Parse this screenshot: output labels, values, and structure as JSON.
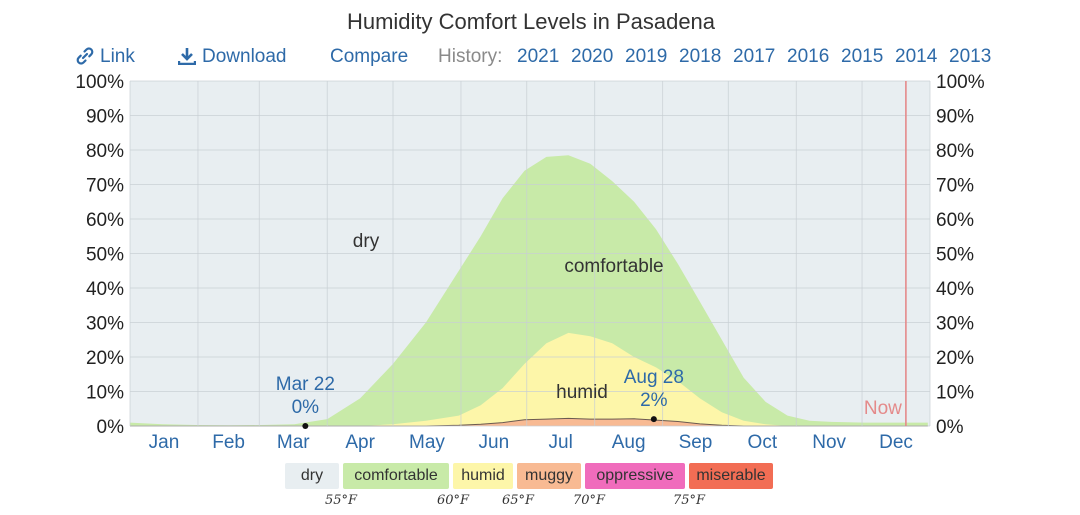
{
  "page": {
    "title": "Humidity Comfort Levels in Pasadena"
  },
  "toolbar": {
    "link_label": "Link",
    "download_label": "Download",
    "compare_label": "Compare",
    "history_label": "History:",
    "years": [
      "2021",
      "2020",
      "2019",
      "2018",
      "2017",
      "2016",
      "2015",
      "2014",
      "2013"
    ],
    "accent": "#2e6aa8"
  },
  "chart_data": {
    "type": "area",
    "title": "Humidity Comfort Levels in Pasadena",
    "months": [
      "Jan",
      "Feb",
      "Mar",
      "Apr",
      "May",
      "Jun",
      "Jul",
      "Aug",
      "Sep",
      "Oct",
      "Nov",
      "Dec"
    ],
    "y_ticks": [
      "0%",
      "10%",
      "20%",
      "30%",
      "40%",
      "50%",
      "60%",
      "70%",
      "80%",
      "90%",
      "100%"
    ],
    "ylim": [
      0,
      100
    ],
    "grid": true,
    "day_of_year_points": [
      0,
      15,
      30,
      45,
      60,
      75,
      90,
      105,
      120,
      135,
      150,
      160,
      170,
      180,
      190,
      200,
      210,
      220,
      230,
      240,
      250,
      260,
      270,
      280,
      290,
      300,
      310,
      320,
      335,
      350,
      364
    ],
    "series": [
      {
        "name": "comfortable",
        "color": "#c8eaa8",
        "values": [
          1,
          0.5,
          0.3,
          0.2,
          0.3,
          0.5,
          2,
          8,
          18,
          30,
          45,
          55,
          66,
          74,
          78,
          78.5,
          76,
          71,
          65,
          57,
          47,
          36,
          25,
          14,
          7,
          3,
          1.5,
          1.2,
          1,
          1,
          1
        ]
      },
      {
        "name": "humid",
        "color": "#fdf6a9",
        "values": [
          0,
          0,
          0,
          0,
          0,
          0,
          0,
          0,
          0.5,
          1.5,
          3,
          6,
          11,
          18,
          24,
          27,
          26,
          24,
          20,
          17,
          13,
          8,
          4,
          1.5,
          0.5,
          0,
          0,
          0,
          0,
          0,
          0
        ]
      },
      {
        "name": "muggy",
        "color": "#f8ba93",
        "values": [
          0,
          0,
          0,
          0,
          0,
          0,
          0,
          0,
          0,
          0,
          0.2,
          0.5,
          1,
          1.8,
          2,
          2.2,
          2,
          2,
          2.1,
          1.7,
          1.3,
          0.6,
          0.2,
          0,
          0,
          0,
          0,
          0,
          0,
          0,
          0
        ]
      }
    ],
    "region_labels": {
      "dry": "dry",
      "comfortable": "comfortable",
      "humid": "humid"
    },
    "annotations": [
      {
        "date": "Mar 22",
        "value_label": "0%",
        "day": 80,
        "value": 0
      },
      {
        "date": "Aug 28",
        "value_label": "2%",
        "day": 239,
        "value": 2
      }
    ],
    "now_label": "Now",
    "now_day": 354,
    "colors": {
      "dry_bg": "#e8eef1",
      "now_line": "#e48a8a",
      "grid": "#c8cfd4",
      "axis_label": "#2e6aa8"
    }
  },
  "legend": {
    "items": [
      {
        "label": "dry",
        "color": "#e8eef1"
      },
      {
        "label": "comfortable",
        "color": "#c8eaa8"
      },
      {
        "label": "humid",
        "color": "#fdf6a9"
      },
      {
        "label": "muggy",
        "color": "#f8ba93"
      },
      {
        "label": "oppressive",
        "color": "#f06cbc"
      },
      {
        "label": "miserable",
        "color": "#f26d54"
      }
    ],
    "thresholds": [
      "55°F",
      "60°F",
      "65°F",
      "70°F",
      "75°F"
    ]
  }
}
